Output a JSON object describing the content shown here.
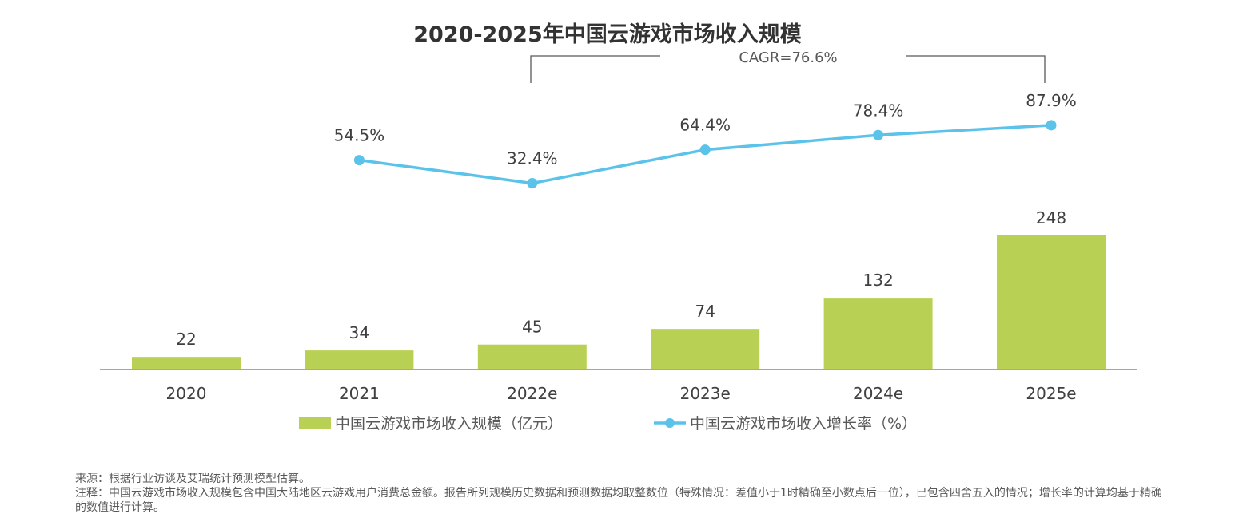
{
  "chart_data": {
    "type": "bar+line",
    "title": "2020-2025年中国云游戏市场收入规模",
    "categories": [
      "2020",
      "2021",
      "2022e",
      "2023e",
      "2024e",
      "2025e"
    ],
    "series": [
      {
        "name": "中国云游戏市场收入规模（亿元）",
        "type": "bar",
        "color": "#b8d154",
        "values": [
          22,
          34,
          45,
          74,
          132,
          248
        ],
        "labels": [
          "22",
          "34",
          "45",
          "74",
          "132",
          "248"
        ]
      },
      {
        "name": "中国云游戏市场收入增长率（%）",
        "type": "line",
        "color": "#5bc3ea",
        "values": [
          null,
          54.5,
          32.4,
          64.4,
          78.4,
          87.9
        ],
        "labels": [
          "",
          "54.5%",
          "32.4%",
          "64.4%",
          "78.4%",
          "87.9%"
        ]
      }
    ],
    "annotation": "CAGR=76.6%",
    "grid": false,
    "legend_placement": "bottom"
  },
  "footer": {
    "source": "来源：根据行业访谈及艾瑞统计预测模型估算。",
    "note": "注释：中国云游戏市场收入规模包含中国大陆地区云游戏用户消费总金额。报告所列规模历史数据和预测数据均取整数位（特殊情况：差值小于1时精确至小数点后一位），已包含四舍五入的情况；增长率的计算均基于精确的数值进行计算。"
  }
}
